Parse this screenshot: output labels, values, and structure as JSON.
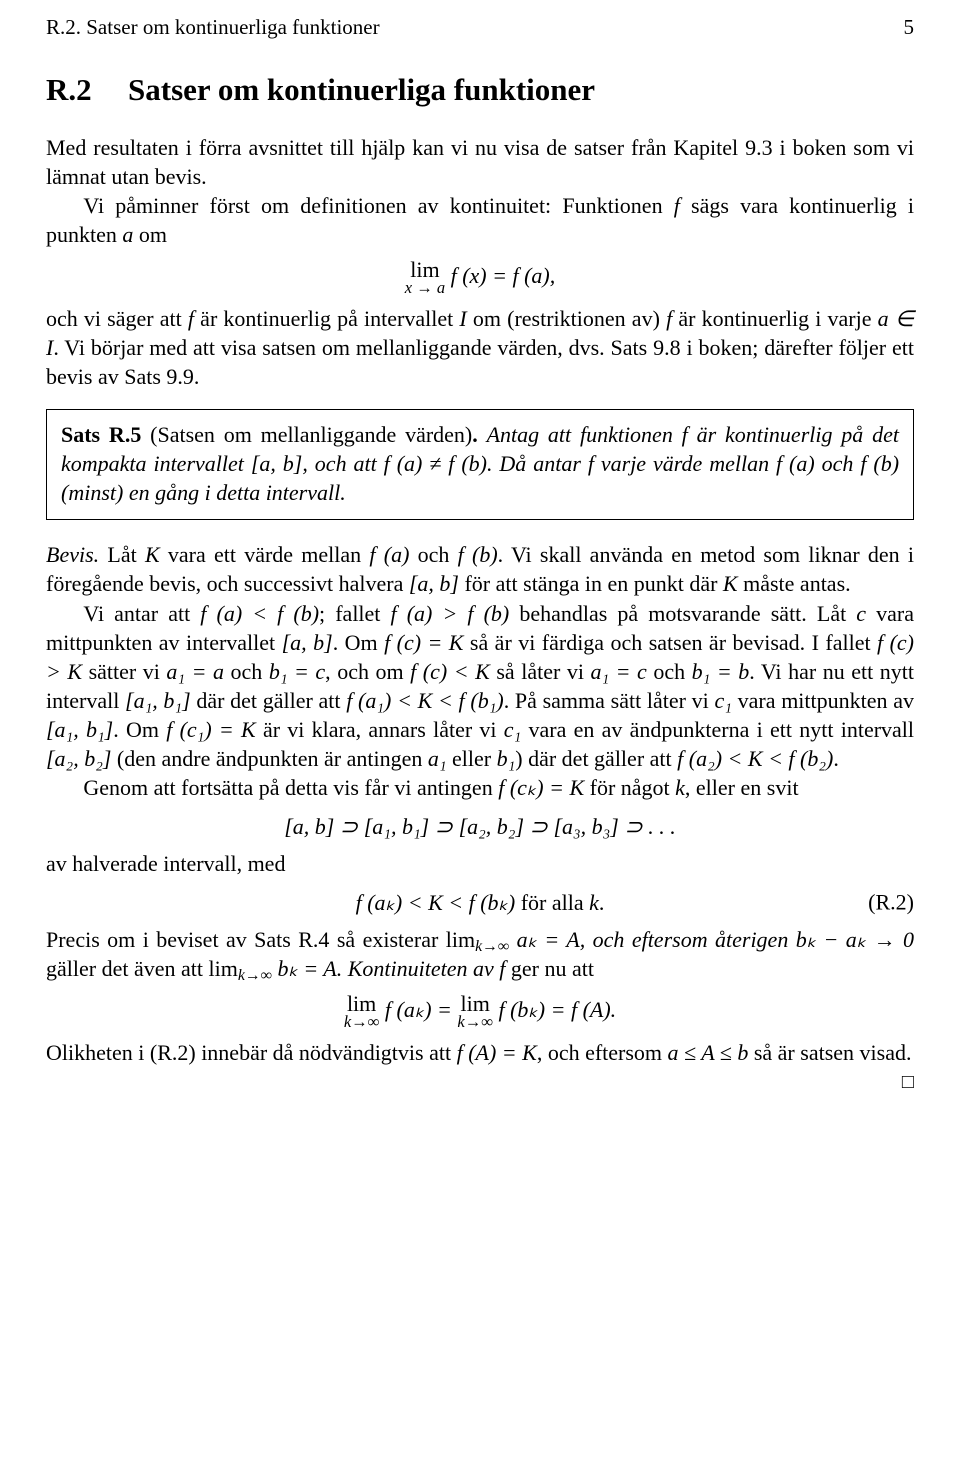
{
  "header": {
    "title": "R.2. Satser om kontinuerliga funktioner",
    "page": "5"
  },
  "section": {
    "number": "R.2",
    "title": "Satser om kontinuerliga funktioner"
  },
  "intro": {
    "p1": "Med resultaten i förra avsnittet till hjälp kan vi nu visa de satser från Kapitel 9.3 i boken som vi lämnat utan bevis.",
    "p2a": "Vi påminner först om definitionen av kontinuitet: Funktionen ",
    "p2b": " sägs vara kontinuerlig i punkten ",
    "p2c": " om",
    "disp1_lim": "lim",
    "disp1_sub": "x → a",
    "disp1_rhs": " f (x) = f (a),",
    "p3a": "och vi säger att ",
    "p3b": " är kontinuerlig på intervallet ",
    "p3c": " om (restriktionen av) ",
    "p3d": " är kontinuerlig i varje ",
    "p3e": ". Vi börjar med att visa satsen om mellanliggande värden, dvs. Sats 9.8 i boken; därefter följer ett bevis av Sats 9.9."
  },
  "theorem": {
    "name": "Sats R.5",
    "paren": " (Satsen om mellanliggande värden)",
    "dot": ". ",
    "body_a": "Antag att funktionen ",
    "body_b": " är kontinuerlig på det kompakta intervallet ",
    "body_c": ", och att ",
    "body_d": ". Då antar ",
    "body_e": " varje värde mellan ",
    "body_f": " och ",
    "body_g": " (minst) en gång i detta intervall."
  },
  "proof": {
    "label": "Bevis.",
    "p1a": "  Låt ",
    "p1b": " vara ett värde mellan ",
    "p1c": " och ",
    "p1d": ". Vi skall använda en metod som liknar den i föregående bevis, och successivt halvera ",
    "p1e": " för att stänga in en punkt där ",
    "p1f": " måste antas.",
    "p2a": "Vi antar att ",
    "p2b": "; fallet ",
    "p2c": " behandlas på motsvarande sätt. Låt ",
    "p2d": " vara mittpunkten av intervallet ",
    "p2e": ". Om ",
    "p2f": " så är vi färdiga och satsen är bevisad. I fallet ",
    "p2g": " sätter vi ",
    "p2h": " och ",
    "p2i": ", och om ",
    "p2j": " så låter vi ",
    "p2k": " och ",
    "p2l": ". Vi har nu ett nytt intervall ",
    "p2m": " där det gäller att ",
    "p2n": ". På samma sätt låter vi ",
    "p2o": " vara mittpunkten av ",
    "p2p": ". Om ",
    "p2q": " är vi klara, annars låter vi ",
    "p2r": " vara en av ändpunkterna i ett nytt intervall ",
    "p2s": " (den andre ändpunkten är antingen ",
    "p2t": " eller ",
    "p2u": ") där det gäller att ",
    "p2v": ".",
    "p3a": "Genom att fortsätta på detta vis får vi antingen ",
    "p3b": " för något ",
    "p3c": ", eller en svit",
    "disp2": "[a, b] ⊃ [a₁, b₁] ⊃ [a₂, b₂] ⊃ [a₃, b₃] ⊃ . . .",
    "p4": "av halverade intervall, med",
    "disp3_lhs": "f (aₖ) < K < f (bₖ)",
    "disp3_mid": "        för alla ",
    "disp3_kdot": ".",
    "disp3_tag": "(R.2)",
    "p5a": "Precis om i beviset av Sats R.4 så existerar lim",
    "p5a_sub": "k→∞",
    "p5b": " aₖ = A, och eftersom återigen ",
    "p5c": " gäller det även att lim",
    "p5c_sub": "k→∞",
    "p5d": " bₖ = A. Kontinuiteten av ",
    "p5e": " ger nu att",
    "disp4_l": "lim",
    "disp4_lsub": "k→∞",
    "disp4_mid1": " f (aₖ) = ",
    "disp4_r": "lim",
    "disp4_rsub": "k→∞",
    "disp4_mid2": " f (bₖ) = f (A).",
    "p6a": "Olikheten i (R.2) innebär då nödvändigtvis att ",
    "p6b": ", och eftersom ",
    "p6c": " så är satsen visad."
  },
  "sym": {
    "f": "f",
    "a": "a",
    "b": "b",
    "c": "c",
    "I": "I",
    "K": "K",
    "k": "k",
    "A": "A",
    "aI": "a ∈ I",
    "ab_int": "[a, b]",
    "fa_neq_fb": "f (a) ≠ f (b)",
    "fa": "f (a)",
    "fb": "f (b)",
    "fa_lt_fb": "f (a) < f (b)",
    "fa_gt_fb": "f (a) > f (b)",
    "fc_eq_K": "f (c) = K",
    "fc_gt_K": "f (c) > K",
    "fc_lt_K": "f (c) < K",
    "a1_eq_a": "a₁ = a",
    "b1_eq_c": "b₁ = c",
    "a1_eq_c": "a₁ = c",
    "b1_eq_b": "b₁ = b",
    "a1b1": "[a₁, b₁]",
    "fa1_lt_K_lt_fb1": "f (a₁) < K < f (b₁)",
    "c1": "c₁",
    "fc1_eq_K": "f (c₁) = K",
    "a2b2": "[a₂, b₂]",
    "a1": "a₁",
    "b1": "b₁",
    "fa2_lt_K_lt_fb2": "f (a₂) < K < f (b₂)",
    "fck_eq_K": "f (cₖ) = K",
    "bk_minus_ak": "bₖ − aₖ → 0",
    "fA_eq_K": "f (A) = K",
    "a_le_A_le_b": "a ≤ A ≤ b"
  },
  "qed": "□"
}
